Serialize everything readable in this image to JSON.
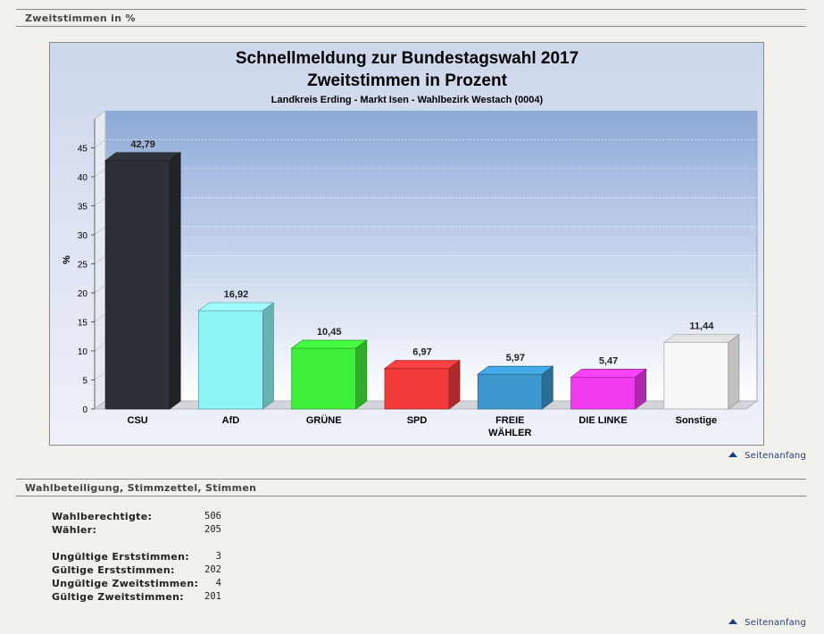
{
  "sections": {
    "votes_header": "Zweitstimmen in %",
    "stats_header": "Wahlbeteiligung, Stimmzettel, Stimmen"
  },
  "nav": {
    "top_link": "Seitenanfang"
  },
  "chart_data": {
    "type": "bar",
    "title": "Schnellmeldung zur Bundestagswahl 2017",
    "subtitle": "Zweitstimmen in Prozent",
    "caption": "Landkreis Erding - Markt Isen - Wahlbezirk Westach (0004)",
    "ylabel": "%",
    "ylim": [
      0,
      50
    ],
    "yticks": [
      0,
      5,
      10,
      15,
      20,
      25,
      30,
      35,
      40,
      45
    ],
    "categories": [
      "CSU",
      "AfD",
      "GRÜNE",
      "SPD",
      "FREIE WÄHLER",
      "DIE LINKE",
      "Sonstige"
    ],
    "values": [
      42.79,
      16.92,
      10.45,
      6.97,
      5.97,
      5.47,
      11.44
    ],
    "value_labels": [
      "42,79",
      "16,92",
      "10,45",
      "6,97",
      "5,97",
      "5,47",
      "11,44"
    ],
    "colors": [
      "#2b2f36",
      "#8ff4f8",
      "#3ef03a",
      "#f23a3a",
      "#3e98d0",
      "#f23cf0",
      "#f8f8f8"
    ],
    "grid": true
  },
  "stats": {
    "eligible": {
      "label": "Wahlberechtigte:",
      "value": "506"
    },
    "voters": {
      "label": "Wähler:",
      "value": "205"
    },
    "invalid_first": {
      "label": "Ungültige Erststimmen:",
      "value": "3"
    },
    "valid_first": {
      "label": "Gültige Erststimmen:",
      "value": "202"
    },
    "invalid_second": {
      "label": "Ungültige Zweitstimmen:",
      "value": "4"
    },
    "valid_second": {
      "label": "Gültige Zweitstimmen:",
      "value": "201"
    }
  }
}
